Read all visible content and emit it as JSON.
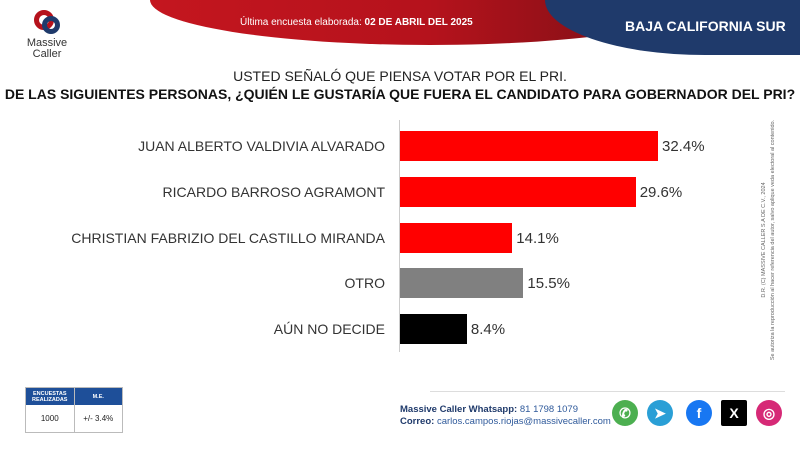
{
  "header": {
    "updated_label": "Última encuesta elaborada:",
    "updated_date": "02 DE ABRIL DEL 2025",
    "region": "BAJA CALIFORNIA SUR",
    "logo_text_1": "Massive",
    "logo_text_2": "Caller"
  },
  "chart_data": {
    "type": "bar",
    "orientation": "horizontal",
    "title": "USTED SEÑALÓ QUE PIENSA VOTAR POR EL PRI.",
    "subtitle": "DE LAS SIGUIENTES PERSONAS, ¿QUIÉN LE GUSTARÍA QUE FUERA EL CANDIDATO PARA GOBERNADOR DEL PRI?",
    "categories": [
      "JUAN ALBERTO VALDIVIA ALVARADO",
      "RICARDO BARROSO AGRAMONT",
      "CHRISTIAN FABRIZIO DEL CASTILLO MIRANDA",
      "OTRO",
      "AÚN NO DECIDE"
    ],
    "values": [
      32.4,
      29.6,
      14.1,
      15.5,
      8.4
    ],
    "value_labels": [
      "32.4%",
      "29.6%",
      "14.1%",
      "15.5%",
      "8.4%"
    ],
    "colors": [
      "#ff0000",
      "#ff0000",
      "#ff0000",
      "#808080",
      "#000000"
    ],
    "xlim": [
      0,
      40
    ]
  },
  "legal": {
    "line1": "D.R. (C) MASSIVE CALLER S.A DE C.V., 2024",
    "line2": "Se autoriza la reproducción al hacer referencia del autor, salvo aplique veda electoral al contenido."
  },
  "stats": {
    "col1": "ENCUESTAS REALIZADAS",
    "col2": "M.E.",
    "val1": "1000",
    "val2": "+/- 3.4%"
  },
  "contact": {
    "whatsapp_label": "Massive Caller Whatsapp:",
    "whatsapp": "81 1798 1079",
    "email_label": "Correo:",
    "email": "carlos.campos.riojas@massivecaller.com"
  },
  "social": [
    {
      "icon": "whatsapp-icon",
      "color": "#4caf50",
      "glyph": "✆"
    },
    {
      "icon": "telegram-icon",
      "color": "#2a9fd6",
      "glyph": "➤"
    },
    {
      "icon": "facebook-icon",
      "color": "#1877f2",
      "glyph": "f"
    },
    {
      "icon": "x-icon",
      "color": "#000000",
      "glyph": "X"
    },
    {
      "icon": "instagram-icon",
      "color": "#d62976",
      "glyph": "◎"
    }
  ]
}
